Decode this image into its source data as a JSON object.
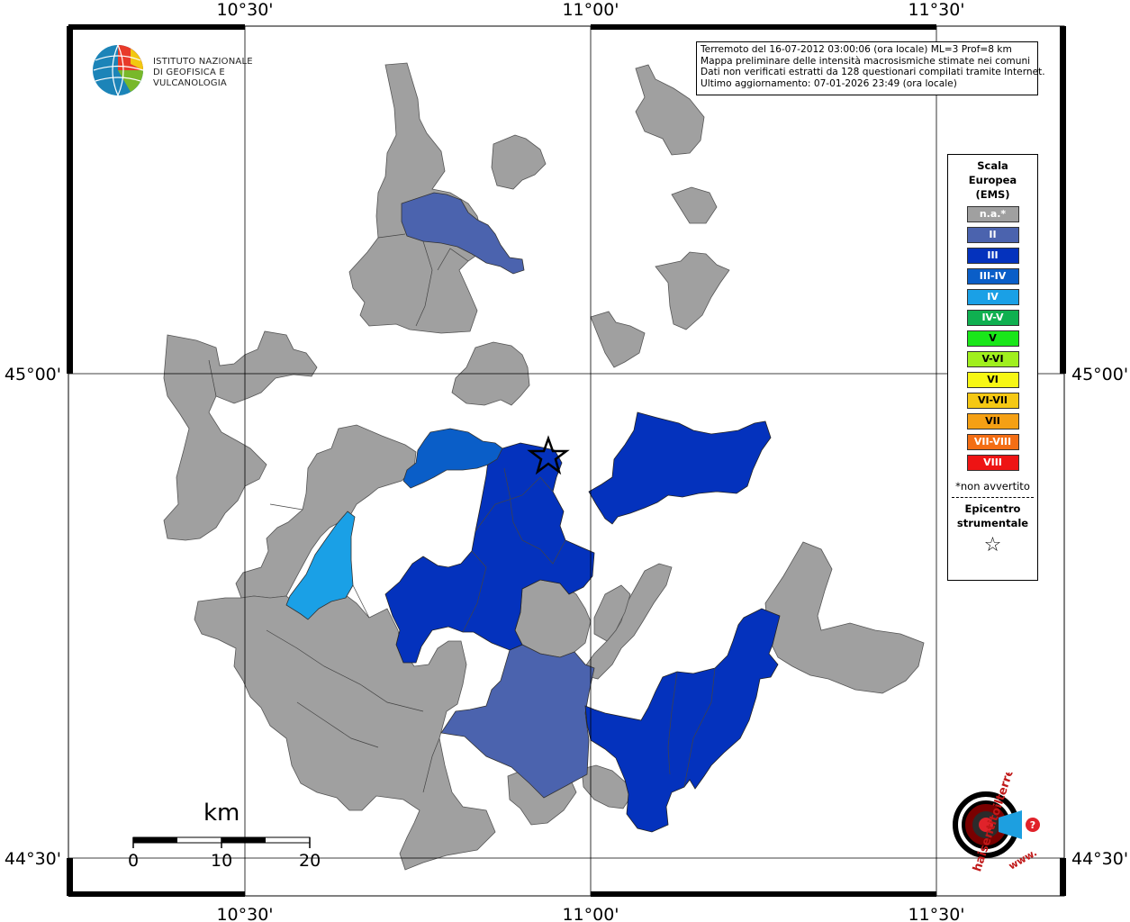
{
  "map": {
    "coords": {
      "top": [
        "10°30'",
        "11°00'",
        "11°30'"
      ],
      "bottom": [
        "10°30'",
        "11°00'",
        "11°30'"
      ],
      "left": [
        "45°00'",
        "44°30'"
      ],
      "right": [
        "45°00'",
        "44°30'"
      ]
    },
    "info_lines": [
      "Terremoto del 16-07-2012 03:00:06 (ora locale) ML=3 Prof=8 km",
      "Mappa preliminare delle intensità macrosismiche stimate nei comuni",
      "Dati non verificati estratti da 128 questionari compilati tramite Internet.",
      "Ultimo aggiornamento: 07-01-2026 23:49 (ora locale)"
    ],
    "logo_text": [
      "ISTITUTO NAZIONALE",
      "DI GEOFISICA E VULCANOLOGIA"
    ],
    "legend": {
      "title": [
        "Scala",
        "Europea",
        "(EMS)"
      ],
      "items": [
        {
          "label": "n.a.*",
          "color": "#a0a0a0"
        },
        {
          "label": "II",
          "color": "#4b63ae"
        },
        {
          "label": "III",
          "color": "#0432bd"
        },
        {
          "label": "III-IV",
          "color": "#0a5ec8"
        },
        {
          "label": "IV",
          "color": "#1aa0e6"
        },
        {
          "label": "IV-V",
          "color": "#0fb050"
        },
        {
          "label": "V",
          "color": "#19e619"
        },
        {
          "label": "V-VI",
          "color": "#a0ef1e"
        },
        {
          "label": "VI",
          "color": "#f7f714"
        },
        {
          "label": "VI-VII",
          "color": "#f5c814"
        },
        {
          "label": "VII",
          "color": "#f5a014"
        },
        {
          "label": "VII-VIII",
          "color": "#f46e14"
        },
        {
          "label": "VIII",
          "color": "#ee1414"
        }
      ],
      "note": "*non avvertito",
      "epicenter_label": [
        "Epicentro",
        "strumentale"
      ],
      "epicenter_symbol": "☆"
    },
    "scale": {
      "unit": "km",
      "ticks": [
        "0",
        "10",
        "20"
      ]
    },
    "hsi_text": "haisentitoilterremoto.it",
    "hsi_www": "www."
  }
}
